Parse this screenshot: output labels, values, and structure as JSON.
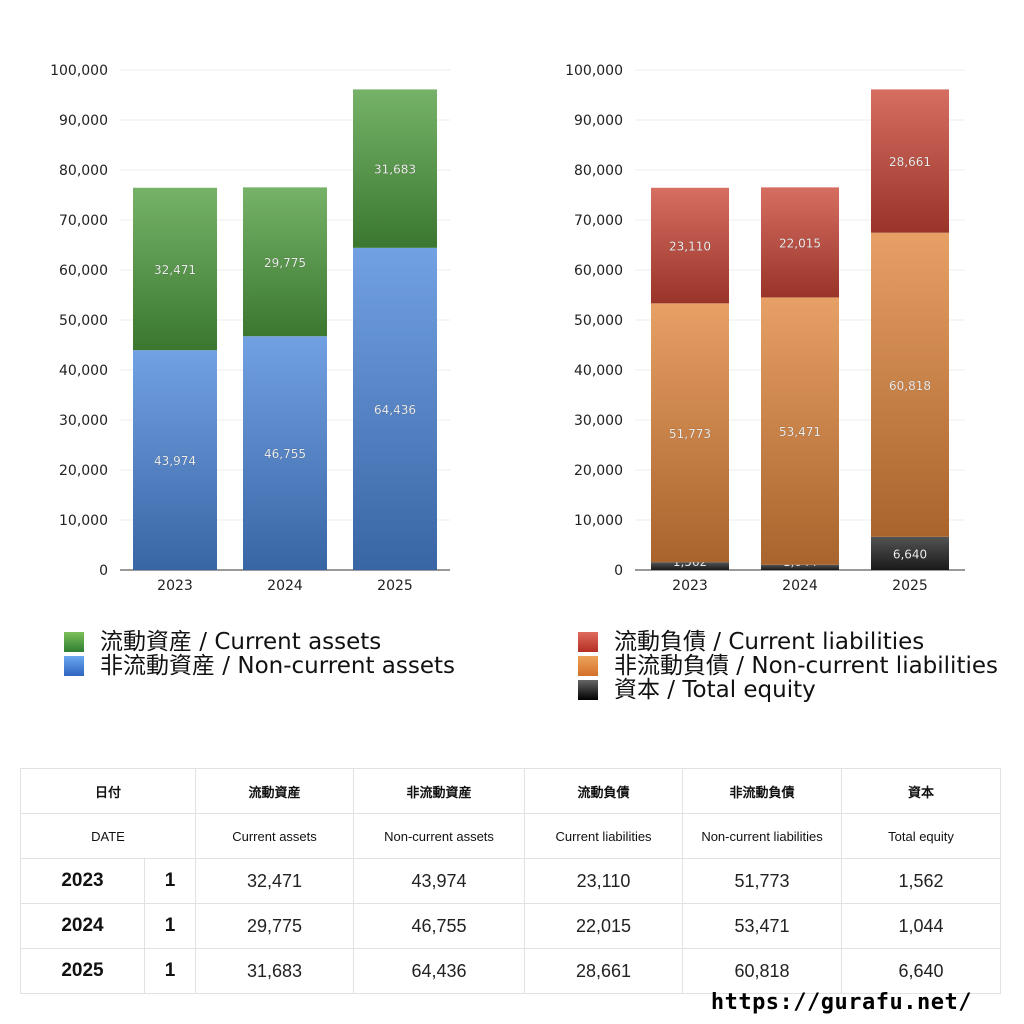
{
  "chart_data": [
    {
      "type": "bar",
      "stacked": true,
      "categories": [
        "2023",
        "2024",
        "2025"
      ],
      "ylim": [
        0,
        100000
      ],
      "yticks": [
        "0",
        "10,000",
        "20,000",
        "30,000",
        "40,000",
        "50,000",
        "60,000",
        "70,000",
        "80,000",
        "90,000",
        "100,000"
      ],
      "series": [
        {
          "name": "非流動資産 / Non-current assets",
          "color": "#4a86db",
          "values": [
            43974,
            46755,
            64436
          ],
          "labels": [
            "43,974",
            "46,755",
            "64,436"
          ]
        },
        {
          "name": "流動資産 / Current assets",
          "color": "#4f9e3f",
          "values": [
            32471,
            29775,
            31683
          ],
          "labels": [
            "32,471",
            "29,775",
            "31,683"
          ]
        }
      ]
    },
    {
      "type": "bar",
      "stacked": true,
      "categories": [
        "2023",
        "2024",
        "2025"
      ],
      "ylim": [
        0,
        100000
      ],
      "yticks": [
        "0",
        "10,000",
        "20,000",
        "30,000",
        "40,000",
        "50,000",
        "60,000",
        "70,000",
        "80,000",
        "90,000",
        "100,000"
      ],
      "series": [
        {
          "name": "資本 / Total equity",
          "color": "#222222",
          "values": [
            1562,
            1044,
            6640
          ],
          "labels": [
            "1,562",
            "1,044",
            "6,640"
          ]
        },
        {
          "name": "非流動負債 / Non-current liabilities",
          "color": "#e0853a",
          "values": [
            51773,
            53471,
            60818
          ],
          "labels": [
            "51,773",
            "53,471",
            "60,818"
          ]
        },
        {
          "name": "流動負債 / Current liabilities",
          "color": "#cc4536",
          "values": [
            23110,
            22015,
            28661
          ],
          "labels": [
            "23,110",
            "22,015",
            "28,661"
          ]
        }
      ]
    }
  ],
  "legend_left": [
    "流動資産 / Current assets",
    "非流動資産 / Non-current assets"
  ],
  "legend_right": [
    "流動負債 / Current liabilities",
    "非流動負債 / Non-current liabilities",
    "資本 / Total equity"
  ],
  "table": {
    "header_ja": [
      "日付",
      "流動資産",
      "非流動資産",
      "流動負債",
      "非流動負債",
      "資本"
    ],
    "header_en": [
      "DATE",
      "Current assets",
      "Non-current assets",
      "Current liabilities",
      "Non-current liabilities",
      "Total equity"
    ],
    "rows": [
      {
        "year": "2023",
        "month": "1",
        "values": [
          "32,471",
          "43,974",
          "23,110",
          "51,773",
          "1,562"
        ]
      },
      {
        "year": "2024",
        "month": "1",
        "values": [
          "29,775",
          "46,755",
          "22,015",
          "53,471",
          "1,044"
        ]
      },
      {
        "year": "2025",
        "month": "1",
        "values": [
          "31,683",
          "64,436",
          "28,661",
          "60,818",
          "6,640"
        ]
      }
    ]
  },
  "site": "https://gurafu.net/"
}
